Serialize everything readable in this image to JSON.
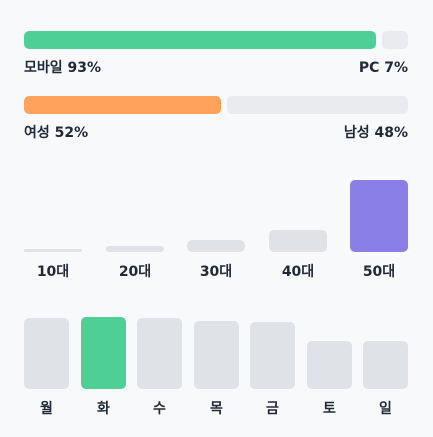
{
  "device": {
    "mobile_label": "모바일 93%",
    "pc_label": "PC 7%",
    "mobile_pct": 93,
    "pc_pct": 7,
    "mobile_color": "#4ecf96",
    "pc_color": "#e9ebef"
  },
  "gender": {
    "female_label": "여성 52%",
    "male_label": "남성 48%",
    "female_pct": 52,
    "male_pct": 48,
    "female_color": "#ffa35c",
    "male_color": "#e9ebef"
  },
  "age": {
    "labels": [
      "10대",
      "20대",
      "30대",
      "40대",
      "50대"
    ],
    "levels": [
      0.04,
      0.08,
      0.16,
      0.31,
      1.0
    ],
    "highlight_index": 4,
    "highlight_color": "#8a7fe6"
  },
  "weekday": {
    "labels": [
      "월",
      "화",
      "수",
      "목",
      "금",
      "토",
      "일"
    ],
    "levels": [
      0.98,
      1.0,
      0.98,
      0.95,
      0.93,
      0.67,
      0.67
    ],
    "highlight_index": 1,
    "highlight_color": "#4ecf96"
  }
}
